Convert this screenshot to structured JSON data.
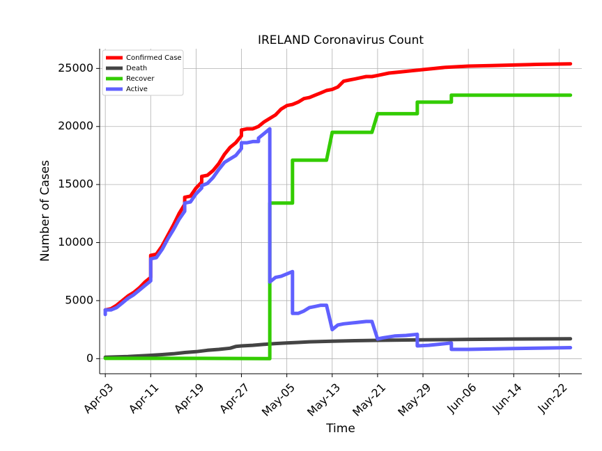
{
  "chart_data": {
    "type": "line",
    "title": "IRELAND Coronavirus Count",
    "xlabel": "Time",
    "ylabel": "Number of Cases",
    "x_range": [
      "2020-04-02",
      "2020-06-26"
    ],
    "ylim": [
      -1300,
      26700
    ],
    "x_ticks": [
      {
        "date": "2020-04-03",
        "label": "Apr-03"
      },
      {
        "date": "2020-04-11",
        "label": "Apr-11"
      },
      {
        "date": "2020-04-19",
        "label": "Apr-19"
      },
      {
        "date": "2020-04-27",
        "label": "Apr-27"
      },
      {
        "date": "2020-05-05",
        "label": "May-05"
      },
      {
        "date": "2020-05-13",
        "label": "May-13"
      },
      {
        "date": "2020-05-21",
        "label": "May-21"
      },
      {
        "date": "2020-05-29",
        "label": "May-29"
      },
      {
        "date": "2020-06-06",
        "label": "Jun-06"
      },
      {
        "date": "2020-06-14",
        "label": "Jun-14"
      },
      {
        "date": "2020-06-22",
        "label": "Jun-22"
      }
    ],
    "y_ticks": [
      0,
      5000,
      10000,
      15000,
      20000,
      25000
    ],
    "grid": true,
    "legend": "top-left",
    "series": [
      {
        "name": "Confirmed Case",
        "color": "#ff0000",
        "points": [
          [
            "2020-04-03",
            4200
          ],
          [
            "2020-04-04",
            4300
          ],
          [
            "2020-04-05",
            4600
          ],
          [
            "2020-04-06",
            5000
          ],
          [
            "2020-04-07",
            5400
          ],
          [
            "2020-04-08",
            5700
          ],
          [
            "2020-04-09",
            6100
          ],
          [
            "2020-04-10",
            6600
          ],
          [
            "2020-04-11",
            7000
          ],
          [
            "2020-04-11",
            8900
          ],
          [
            "2020-04-12",
            9000
          ],
          [
            "2020-04-13",
            9700
          ],
          [
            "2020-04-14",
            10600
          ],
          [
            "2020-04-15",
            11500
          ],
          [
            "2020-04-16",
            12500
          ],
          [
            "2020-04-17",
            13300
          ],
          [
            "2020-04-17",
            13900
          ],
          [
            "2020-04-18",
            14000
          ],
          [
            "2020-04-19",
            14700
          ],
          [
            "2020-04-20",
            15200
          ],
          [
            "2020-04-20",
            15700
          ],
          [
            "2020-04-21",
            15800
          ],
          [
            "2020-04-22",
            16200
          ],
          [
            "2020-04-23",
            16800
          ],
          [
            "2020-04-24",
            17600
          ],
          [
            "2020-04-25",
            18200
          ],
          [
            "2020-04-26",
            18600
          ],
          [
            "2020-04-27",
            19200
          ],
          [
            "2020-04-27",
            19700
          ],
          [
            "2020-04-28",
            19800
          ],
          [
            "2020-04-29",
            19800
          ],
          [
            "2020-04-30",
            20000
          ],
          [
            "2020-05-01",
            20400
          ],
          [
            "2020-05-02",
            20700
          ],
          [
            "2020-05-03",
            21000
          ],
          [
            "2020-05-04",
            21500
          ],
          [
            "2020-05-05",
            21800
          ],
          [
            "2020-05-06",
            21900
          ],
          [
            "2020-05-07",
            22100
          ],
          [
            "2020-05-08",
            22400
          ],
          [
            "2020-05-09",
            22500
          ],
          [
            "2020-05-10",
            22700
          ],
          [
            "2020-05-11",
            22900
          ],
          [
            "2020-05-12",
            23100
          ],
          [
            "2020-05-13",
            23200
          ],
          [
            "2020-05-14",
            23400
          ],
          [
            "2020-05-15",
            23900
          ],
          [
            "2020-05-16",
            24000
          ],
          [
            "2020-05-17",
            24100
          ],
          [
            "2020-05-18",
            24200
          ],
          [
            "2020-05-19",
            24300
          ],
          [
            "2020-05-20",
            24300
          ],
          [
            "2020-05-21",
            24400
          ],
          [
            "2020-05-23",
            24600
          ],
          [
            "2020-05-25",
            24700
          ],
          [
            "2020-05-27",
            24800
          ],
          [
            "2020-05-29",
            24900
          ],
          [
            "2020-05-31",
            25000
          ],
          [
            "2020-06-02",
            25100
          ],
          [
            "2020-06-04",
            25150
          ],
          [
            "2020-06-06",
            25200
          ],
          [
            "2020-06-10",
            25250
          ],
          [
            "2020-06-14",
            25300
          ],
          [
            "2020-06-18",
            25350
          ],
          [
            "2020-06-22",
            25380
          ],
          [
            "2020-06-24",
            25400
          ]
        ]
      },
      {
        "name": "Death",
        "color": "#444444",
        "points": [
          [
            "2020-04-03",
            120
          ],
          [
            "2020-04-07",
            180
          ],
          [
            "2020-04-11",
            290
          ],
          [
            "2020-04-13",
            350
          ],
          [
            "2020-04-15",
            420
          ],
          [
            "2020-04-17",
            530
          ],
          [
            "2020-04-19",
            600
          ],
          [
            "2020-04-21",
            720
          ],
          [
            "2020-04-23",
            800
          ],
          [
            "2020-04-25",
            900
          ],
          [
            "2020-04-26",
            1050
          ],
          [
            "2020-04-27",
            1100
          ],
          [
            "2020-04-29",
            1150
          ],
          [
            "2020-05-01",
            1230
          ],
          [
            "2020-05-03",
            1300
          ],
          [
            "2020-05-05",
            1350
          ],
          [
            "2020-05-07",
            1400
          ],
          [
            "2020-05-09",
            1450
          ],
          [
            "2020-05-13",
            1500
          ],
          [
            "2020-05-17",
            1550
          ],
          [
            "2020-05-21",
            1580
          ],
          [
            "2020-05-25",
            1600
          ],
          [
            "2020-05-29",
            1620
          ],
          [
            "2020-06-02",
            1640
          ],
          [
            "2020-06-06",
            1660
          ],
          [
            "2020-06-14",
            1690
          ],
          [
            "2020-06-24",
            1710
          ]
        ]
      },
      {
        "name": "Recover",
        "color": "#33cc00",
        "points": [
          [
            "2020-04-03",
            25
          ],
          [
            "2020-04-17",
            25
          ],
          [
            "2020-04-20",
            25
          ],
          [
            "2020-05-02",
            0
          ],
          [
            "2020-05-02",
            13400
          ],
          [
            "2020-05-06",
            13400
          ],
          [
            "2020-05-06",
            17100
          ],
          [
            "2020-05-12",
            17100
          ],
          [
            "2020-05-13",
            19500
          ],
          [
            "2020-05-20",
            19500
          ],
          [
            "2020-05-21",
            21100
          ],
          [
            "2020-05-28",
            21100
          ],
          [
            "2020-05-28",
            22100
          ],
          [
            "2020-06-03",
            22100
          ],
          [
            "2020-06-03",
            22700
          ],
          [
            "2020-06-24",
            22700
          ]
        ]
      },
      {
        "name": "Active",
        "color": "#6060ff",
        "points": [
          [
            "2020-04-03",
            3800
          ],
          [
            "2020-04-03",
            4200
          ],
          [
            "2020-04-04",
            4200
          ],
          [
            "2020-04-05",
            4400
          ],
          [
            "2020-04-06",
            4800
          ],
          [
            "2020-04-07",
            5200
          ],
          [
            "2020-04-08",
            5500
          ],
          [
            "2020-04-09",
            5900
          ],
          [
            "2020-04-10",
            6300
          ],
          [
            "2020-04-11",
            6700
          ],
          [
            "2020-04-11",
            8600
          ],
          [
            "2020-04-12",
            8700
          ],
          [
            "2020-04-13",
            9400
          ],
          [
            "2020-04-14",
            10300
          ],
          [
            "2020-04-15",
            11100
          ],
          [
            "2020-04-16",
            12000
          ],
          [
            "2020-04-17",
            12700
          ],
          [
            "2020-04-17",
            13400
          ],
          [
            "2020-04-18",
            13500
          ],
          [
            "2020-04-19",
            14200
          ],
          [
            "2020-04-20",
            14700
          ],
          [
            "2020-04-20",
            14900
          ],
          [
            "2020-04-21",
            15100
          ],
          [
            "2020-04-22",
            15600
          ],
          [
            "2020-04-23",
            16300
          ],
          [
            "2020-04-24",
            16900
          ],
          [
            "2020-04-25",
            17200
          ],
          [
            "2020-04-26",
            17500
          ],
          [
            "2020-04-27",
            18100
          ],
          [
            "2020-04-27",
            18600
          ],
          [
            "2020-04-28",
            18600
          ],
          [
            "2020-04-29",
            18700
          ],
          [
            "2020-04-30",
            18700
          ],
          [
            "2020-04-30",
            19000
          ],
          [
            "2020-05-01",
            19400
          ],
          [
            "2020-05-02",
            19800
          ],
          [
            "2020-05-02",
            6600
          ],
          [
            "2020-05-03",
            7000
          ],
          [
            "2020-05-04",
            7100
          ],
          [
            "2020-05-05",
            7300
          ],
          [
            "2020-05-06",
            7500
          ],
          [
            "2020-05-06",
            3900
          ],
          [
            "2020-05-07",
            3900
          ],
          [
            "2020-05-08",
            4100
          ],
          [
            "2020-05-09",
            4400
          ],
          [
            "2020-05-10",
            4500
          ],
          [
            "2020-05-11",
            4600
          ],
          [
            "2020-05-12",
            4600
          ],
          [
            "2020-05-13",
            2500
          ],
          [
            "2020-05-14",
            2900
          ],
          [
            "2020-05-15",
            3000
          ],
          [
            "2020-05-17",
            3100
          ],
          [
            "2020-05-19",
            3200
          ],
          [
            "2020-05-20",
            3200
          ],
          [
            "2020-05-21",
            1700
          ],
          [
            "2020-05-22",
            1800
          ],
          [
            "2020-05-24",
            1950
          ],
          [
            "2020-05-26",
            2000
          ],
          [
            "2020-05-28",
            2100
          ],
          [
            "2020-05-28",
            1100
          ],
          [
            "2020-05-30",
            1150
          ],
          [
            "2020-06-01",
            1250
          ],
          [
            "2020-06-03",
            1350
          ],
          [
            "2020-06-03",
            800
          ],
          [
            "2020-06-06",
            800
          ],
          [
            "2020-06-14",
            870
          ],
          [
            "2020-06-24",
            950
          ]
        ]
      }
    ]
  }
}
